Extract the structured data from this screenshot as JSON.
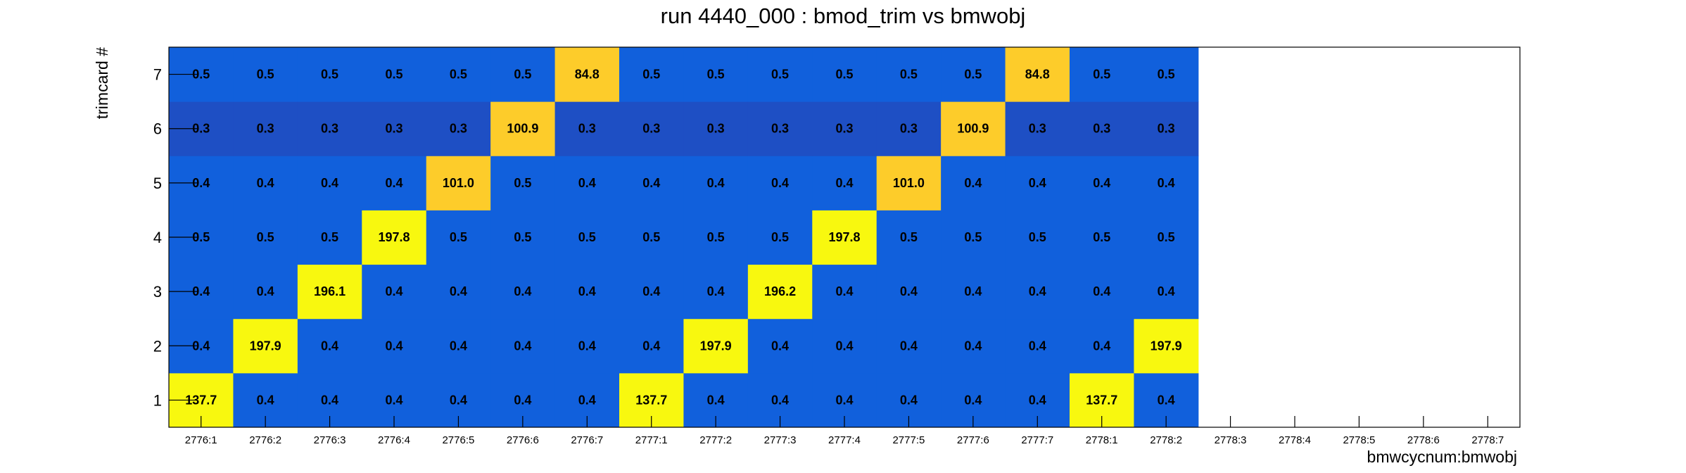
{
  "chart_data": {
    "type": "heatmap",
    "title": "run 4440_000 : bmod_trim vs bmwobj",
    "xlabel": "bmwcycnum:bmwobj",
    "ylabel": "trimcard #",
    "x_categories": [
      "2776:1",
      "2776:2",
      "2776:3",
      "2776:4",
      "2776:5",
      "2776:6",
      "2776:7",
      "2777:1",
      "2777:2",
      "2777:3",
      "2777:4",
      "2777:5",
      "2777:6",
      "2777:7",
      "2778:1",
      "2778:2",
      "2778:3",
      "2778:4",
      "2778:5",
      "2778:6",
      "2778:7"
    ],
    "y_categories": [
      "1",
      "2",
      "3",
      "4",
      "5",
      "6",
      "7"
    ],
    "values": [
      [
        137.7,
        0.4,
        0.4,
        0.4,
        0.4,
        0.4,
        0.4,
        137.7,
        0.4,
        0.4,
        0.4,
        0.4,
        0.4,
        0.4,
        137.7,
        0.4,
        null,
        null,
        null,
        null,
        null
      ],
      [
        0.4,
        197.9,
        0.4,
        0.4,
        0.4,
        0.4,
        0.4,
        0.4,
        197.9,
        0.4,
        0.4,
        0.4,
        0.4,
        0.4,
        0.4,
        197.9,
        null,
        null,
        null,
        null,
        null
      ],
      [
        0.4,
        0.4,
        196.1,
        0.4,
        0.4,
        0.4,
        0.4,
        0.4,
        0.4,
        196.2,
        0.4,
        0.4,
        0.4,
        0.4,
        0.4,
        0.4,
        null,
        null,
        null,
        null,
        null
      ],
      [
        0.5,
        0.5,
        0.5,
        197.8,
        0.5,
        0.5,
        0.5,
        0.5,
        0.5,
        0.5,
        197.8,
        0.5,
        0.5,
        0.5,
        0.5,
        0.5,
        null,
        null,
        null,
        null,
        null
      ],
      [
        0.4,
        0.4,
        0.4,
        0.4,
        101.0,
        0.5,
        0.4,
        0.4,
        0.4,
        0.4,
        0.4,
        101.0,
        0.4,
        0.4,
        0.4,
        0.4,
        null,
        null,
        null,
        null,
        null
      ],
      [
        0.3,
        0.3,
        0.3,
        0.3,
        0.3,
        100.9,
        0.3,
        0.3,
        0.3,
        0.3,
        0.3,
        0.3,
        100.9,
        0.3,
        0.3,
        0.3,
        null,
        null,
        null,
        null,
        null
      ],
      [
        0.5,
        0.5,
        0.5,
        0.5,
        0.5,
        0.5,
        84.8,
        0.5,
        0.5,
        0.5,
        0.5,
        0.5,
        0.5,
        84.8,
        0.5,
        0.5,
        null,
        null,
        null,
        null,
        null
      ]
    ],
    "colors": {
      "low_dark": "#2a3aad",
      "low_mid": "#1e4fc4",
      "low": "#1160dc",
      "high_orange": "#fdcc2a",
      "high_yellow": "#f8f80f"
    }
  }
}
